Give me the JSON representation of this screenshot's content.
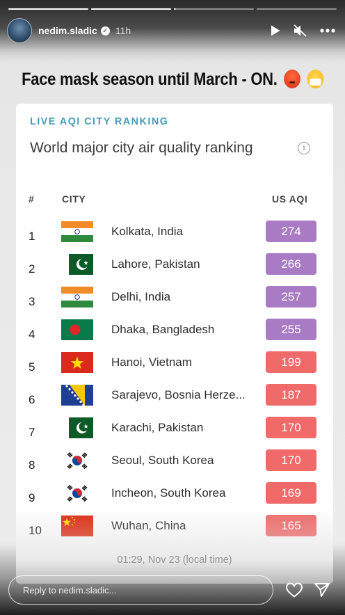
{
  "story": {
    "progress_segments": 4,
    "active_segment": 3,
    "username": "nedim.sladic",
    "time_ago": "11h",
    "caption": "Face mask season until March - ON."
  },
  "card": {
    "eyebrow": "LIVE AQI CITY RANKING",
    "title": "World major city air quality ranking",
    "columns": {
      "rank": "#",
      "city": "CITY",
      "aqi": "US AQI"
    },
    "rows": [
      {
        "rank": "1",
        "city": "Kolkata, India",
        "aqi": "274",
        "flag": "india"
      },
      {
        "rank": "2",
        "city": "Lahore, Pakistan",
        "aqi": "266",
        "flag": "pakistan"
      },
      {
        "rank": "3",
        "city": "Delhi, India",
        "aqi": "257",
        "flag": "india"
      },
      {
        "rank": "4",
        "city": "Dhaka, Bangladesh",
        "aqi": "255",
        "flag": "bangladesh"
      },
      {
        "rank": "5",
        "city": "Hanoi, Vietnam",
        "aqi": "199",
        "flag": "vietnam"
      },
      {
        "rank": "6",
        "city": "Sarajevo, Bosnia Herze...",
        "aqi": "187",
        "flag": "bosnia"
      },
      {
        "rank": "7",
        "city": "Karachi, Pakistan",
        "aqi": "170",
        "flag": "pakistan"
      },
      {
        "rank": "8",
        "city": "Seoul, South Korea",
        "aqi": "170",
        "flag": "south-korea"
      },
      {
        "rank": "9",
        "city": "Incheon, South Korea",
        "aqi": "169",
        "flag": "south-korea"
      },
      {
        "rank": "10",
        "city": "Wuhan, China",
        "aqi": "165",
        "flag": "china"
      }
    ],
    "timestamp": "01:29, Nov 23 (local time)"
  },
  "reply": {
    "placeholder": "Reply to nedim.sladic..."
  },
  "colors": {
    "very_unhealthy": "#a97bc4",
    "unhealthy": "#f06a6a",
    "eyebrow": "#4a9db8"
  }
}
